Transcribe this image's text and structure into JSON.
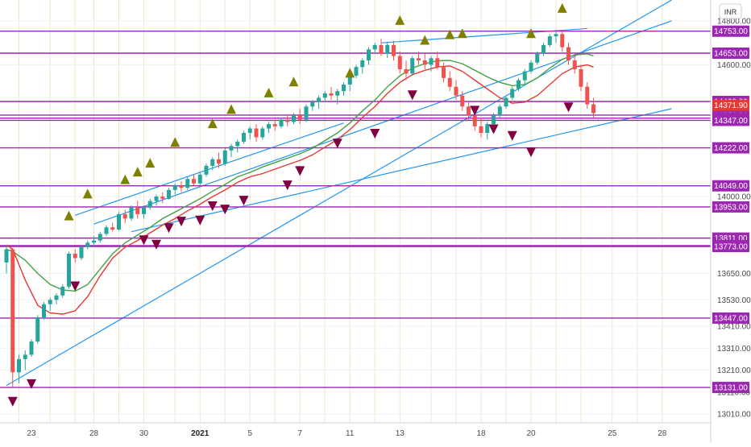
{
  "chart_data": {
    "type": "candlestick",
    "symbol_currency": "INR",
    "price_axis": {
      "range": [
        12970,
        14895
      ],
      "ticks": [
        {
          "label": "14800.00",
          "value": 14800
        },
        {
          "label": "14600.00",
          "value": 14600
        },
        {
          "label": "14000.00",
          "value": 14000
        },
        {
          "label": "13650.00",
          "value": 13650
        },
        {
          "label": "13530.00",
          "value": 13530
        },
        {
          "label": "13410.00",
          "value": 13410
        },
        {
          "label": "13310.00",
          "value": 13310
        },
        {
          "label": "13210.00",
          "value": 13210
        },
        {
          "label": "13110.00",
          "value": 13110
        },
        {
          "label": "13010.00",
          "value": 13010
        }
      ]
    },
    "time_axis": {
      "labels": [
        {
          "label": "23",
          "bar": 4
        },
        {
          "label": "28",
          "bar": 14
        },
        {
          "label": "30",
          "bar": 22
        },
        {
          "label": "2021",
          "bar": 31,
          "bold": true
        },
        {
          "label": "5",
          "bar": 39
        },
        {
          "label": "7",
          "bar": 47
        },
        {
          "label": "11",
          "bar": 55
        },
        {
          "label": "13",
          "bar": 63
        },
        {
          "label": "18",
          "bar": 76
        },
        {
          "label": "20",
          "bar": 84
        },
        {
          "label": "25",
          "bar": 97
        },
        {
          "label": "28",
          "bar": 105
        }
      ],
      "vertical_grid_bars": [
        2,
        7,
        11,
        14,
        18,
        22,
        27,
        31,
        35,
        39,
        43,
        47,
        51,
        55,
        59,
        63,
        68,
        72,
        76,
        80,
        84,
        88,
        92,
        97,
        101,
        105
      ]
    },
    "horizontal_levels": [
      {
        "label": "14753.00",
        "value": 14753
      },
      {
        "label": "14653.00",
        "value": 14653
      },
      {
        "label": "14433.00",
        "value": 14433
      },
      {
        "label": "14371.00",
        "value": 14371
      },
      {
        "label": "14357.00",
        "value": 14357
      },
      {
        "label": "14347.00",
        "value": 14347
      },
      {
        "label": "14222.00",
        "value": 14222
      },
      {
        "label": "14049.00",
        "value": 14049
      },
      {
        "label": "13953.00",
        "value": 13953
      },
      {
        "label": "13811.00",
        "value": 13811
      },
      {
        "label": "13777.00",
        "value": 13777
      },
      {
        "label": "13773.00",
        "value": 13773
      },
      {
        "label": "13447.00",
        "value": 13447
      },
      {
        "label": "13131.00",
        "value": 13131
      }
    ],
    "current_price": {
      "label": "14371.90",
      "value": 14371.9
    },
    "colors": {
      "level_line": "#9c27b0",
      "level_label_bg": "#9c27b0",
      "current_price_bg": "#e53935",
      "trendline": "#2196f3",
      "ema_fast": "#e53935",
      "ema_slow": "#43a047",
      "candle_up": "#26a69a",
      "candle_down": "#ef5350",
      "signal_up": "#808000",
      "signal_down": "#800040",
      "grid_vertical": "#f5e6c8",
      "grid_horizontal": "#f0f0f0"
    },
    "trendlines": [
      {
        "name": "",
        "points": [
          [
            0,
            13140
          ],
          [
            106.5,
            14895
          ]
        ]
      },
      {
        "name": "",
        "points": [
          [
            14,
            13875
          ],
          [
            106.5,
            14800
          ]
        ]
      },
      {
        "name": "",
        "points": [
          [
            20,
            13840
          ],
          [
            106.5,
            14400
          ]
        ]
      },
      {
        "name": "",
        "points": [
          [
            11,
            13915
          ],
          [
            54,
            14335
          ]
        ]
      },
      {
        "name": "",
        "points": [
          [
            60,
            14700
          ],
          [
            93,
            14765
          ]
        ]
      }
    ],
    "ema_fast": [
      [
        0,
        13780
      ],
      [
        1,
        13760
      ],
      [
        3,
        13620
      ],
      [
        5,
        13505
      ],
      [
        7,
        13470
      ],
      [
        9,
        13465
      ],
      [
        11,
        13480
      ],
      [
        13,
        13545
      ],
      [
        15,
        13640
      ],
      [
        17,
        13720
      ],
      [
        19,
        13770
      ],
      [
        21,
        13800
      ],
      [
        23,
        13835
      ],
      [
        25,
        13870
      ],
      [
        27,
        13900
      ],
      [
        29,
        13935
      ],
      [
        31,
        13965
      ],
      [
        33,
        14000
      ],
      [
        35,
        14030
      ],
      [
        37,
        14065
      ],
      [
        39,
        14090
      ],
      [
        41,
        14105
      ],
      [
        43,
        14125
      ],
      [
        45,
        14145
      ],
      [
        47,
        14165
      ],
      [
        49,
        14190
      ],
      [
        51,
        14225
      ],
      [
        53,
        14260
      ],
      [
        55,
        14305
      ],
      [
        57,
        14360
      ],
      [
        59,
        14410
      ],
      [
        61,
        14470
      ],
      [
        63,
        14520
      ],
      [
        65,
        14555
      ],
      [
        67,
        14575
      ],
      [
        69,
        14590
      ],
      [
        71,
        14595
      ],
      [
        73,
        14570
      ],
      [
        75,
        14530
      ],
      [
        77,
        14490
      ],
      [
        79,
        14450
      ],
      [
        81,
        14425
      ],
      [
        83,
        14430
      ],
      [
        85,
        14460
      ],
      [
        87,
        14510
      ],
      [
        89,
        14560
      ],
      [
        91,
        14590
      ],
      [
        93,
        14600
      ],
      [
        94,
        14590
      ]
    ],
    "ema_slow": [
      [
        0,
        13760
      ],
      [
        1,
        13750
      ],
      [
        3,
        13710
      ],
      [
        5,
        13650
      ],
      [
        7,
        13600
      ],
      [
        9,
        13575
      ],
      [
        11,
        13570
      ],
      [
        13,
        13600
      ],
      [
        15,
        13670
      ],
      [
        17,
        13740
      ],
      [
        19,
        13790
      ],
      [
        21,
        13825
      ],
      [
        23,
        13860
      ],
      [
        25,
        13900
      ],
      [
        27,
        13930
      ],
      [
        29,
        13960
      ],
      [
        31,
        13990
      ],
      [
        33,
        14025
      ],
      [
        35,
        14055
      ],
      [
        37,
        14090
      ],
      [
        39,
        14110
      ],
      [
        41,
        14135
      ],
      [
        43,
        14155
      ],
      [
        45,
        14175
      ],
      [
        47,
        14195
      ],
      [
        49,
        14220
      ],
      [
        51,
        14255
      ],
      [
        53,
        14290
      ],
      [
        55,
        14335
      ],
      [
        57,
        14390
      ],
      [
        59,
        14440
      ],
      [
        61,
        14500
      ],
      [
        63,
        14550
      ],
      [
        65,
        14585
      ],
      [
        67,
        14605
      ],
      [
        69,
        14618
      ],
      [
        71,
        14620
      ],
      [
        73,
        14605
      ],
      [
        75,
        14575
      ],
      [
        77,
        14545
      ],
      [
        79,
        14520
      ],
      [
        81,
        14505
      ],
      [
        83,
        14510
      ],
      [
        85,
        14540
      ],
      [
        87,
        14585
      ],
      [
        89,
        14625
      ],
      [
        91,
        14645
      ],
      [
        93,
        14650
      ],
      [
        94,
        14640
      ]
    ],
    "candles": [
      [
        0,
        13700,
        13780,
        13650,
        13760
      ],
      [
        1,
        13760,
        13765,
        13130,
        13200
      ],
      [
        2,
        13200,
        13280,
        13150,
        13260
      ],
      [
        3,
        13260,
        13300,
        13210,
        13280
      ],
      [
        4,
        13280,
        13350,
        13270,
        13340
      ],
      [
        5,
        13340,
        13460,
        13330,
        13450
      ],
      [
        6,
        13450,
        13520,
        13440,
        13510
      ],
      [
        7,
        13510,
        13540,
        13480,
        13530
      ],
      [
        8,
        13530,
        13560,
        13510,
        13550
      ],
      [
        9,
        13550,
        13600,
        13540,
        13590
      ],
      [
        10,
        13590,
        13750,
        13580,
        13740
      ],
      [
        11,
        13740,
        13760,
        13700,
        13720
      ],
      [
        12,
        13720,
        13780,
        13710,
        13770
      ],
      [
        13,
        13770,
        13800,
        13760,
        13790
      ],
      [
        14,
        13790,
        13820,
        13770,
        13800
      ],
      [
        15,
        13800,
        13840,
        13790,
        13830
      ],
      [
        16,
        13830,
        13870,
        13820,
        13860
      ],
      [
        17,
        13860,
        13880,
        13840,
        13850
      ],
      [
        18,
        13850,
        13930,
        13845,
        13920
      ],
      [
        19,
        13920,
        13940,
        13880,
        13900
      ],
      [
        20,
        13900,
        13960,
        13890,
        13950
      ],
      [
        21,
        13950,
        13980,
        13900,
        13920
      ],
      [
        22,
        13920,
        13960,
        13900,
        13950
      ],
      [
        23,
        13950,
        13990,
        13940,
        13980
      ],
      [
        24,
        13980,
        14010,
        13960,
        14000
      ],
      [
        25,
        14000,
        14020,
        13970,
        13990
      ],
      [
        26,
        13990,
        14040,
        13985,
        14030
      ],
      [
        27,
        14030,
        14060,
        14010,
        14050
      ],
      [
        28,
        14050,
        14070,
        14020,
        14040
      ],
      [
        29,
        14040,
        14090,
        14030,
        14080
      ],
      [
        30,
        14080,
        14100,
        14050,
        14060
      ],
      [
        31,
        14060,
        14110,
        14050,
        14100
      ],
      [
        32,
        14100,
        14150,
        14090,
        14140
      ],
      [
        33,
        14140,
        14180,
        14120,
        14170
      ],
      [
        34,
        14170,
        14200,
        14130,
        14150
      ],
      [
        35,
        14150,
        14220,
        14140,
        14210
      ],
      [
        36,
        14210,
        14240,
        14180,
        14230
      ],
      [
        37,
        14230,
        14260,
        14200,
        14250
      ],
      [
        38,
        14250,
        14300,
        14240,
        14290
      ],
      [
        39,
        14290,
        14320,
        14260,
        14310
      ],
      [
        40,
        14310,
        14330,
        14250,
        14270
      ],
      [
        41,
        14270,
        14320,
        14260,
        14310
      ],
      [
        42,
        14310,
        14340,
        14290,
        14330
      ],
      [
        43,
        14330,
        14350,
        14300,
        14320
      ],
      [
        44,
        14320,
        14360,
        14310,
        14350
      ],
      [
        45,
        14350,
        14370,
        14320,
        14340
      ],
      [
        46,
        14340,
        14380,
        14330,
        14370
      ],
      [
        47,
        14370,
        14400,
        14330,
        14350
      ],
      [
        48,
        14350,
        14420,
        14340,
        14410
      ],
      [
        49,
        14410,
        14440,
        14390,
        14430
      ],
      [
        50,
        14430,
        14460,
        14400,
        14450
      ],
      [
        51,
        14450,
        14480,
        14430,
        14470
      ],
      [
        52,
        14470,
        14500,
        14440,
        14460
      ],
      [
        53,
        14460,
        14490,
        14420,
        14480
      ],
      [
        54,
        14480,
        14520,
        14460,
        14510
      ],
      [
        55,
        14510,
        14560,
        14480,
        14550
      ],
      [
        56,
        14550,
        14600,
        14540,
        14590
      ],
      [
        57,
        14590,
        14630,
        14560,
        14620
      ],
      [
        58,
        14620,
        14680,
        14600,
        14670
      ],
      [
        59,
        14670,
        14700,
        14650,
        14690
      ],
      [
        60,
        14690,
        14720,
        14640,
        14650
      ],
      [
        61,
        14650,
        14700,
        14630,
        14690
      ],
      [
        62,
        14690,
        14710,
        14620,
        14640
      ],
      [
        63,
        14640,
        14660,
        14560,
        14580
      ],
      [
        64,
        14580,
        14620,
        14530,
        14560
      ],
      [
        65,
        14560,
        14640,
        14550,
        14630
      ],
      [
        66,
        14630,
        14660,
        14600,
        14620
      ],
      [
        67,
        14620,
        14650,
        14580,
        14600
      ],
      [
        68,
        14600,
        14640,
        14570,
        14630
      ],
      [
        69,
        14630,
        14660,
        14580,
        14590
      ],
      [
        70,
        14590,
        14610,
        14520,
        14540
      ],
      [
        71,
        14540,
        14570,
        14480,
        14500
      ],
      [
        72,
        14500,
        14530,
        14440,
        14460
      ],
      [
        73,
        14460,
        14480,
        14390,
        14410
      ],
      [
        74,
        14410,
        14430,
        14350,
        14370
      ],
      [
        75,
        14370,
        14400,
        14300,
        14320
      ],
      [
        76,
        14320,
        14360,
        14270,
        14290
      ],
      [
        77,
        14290,
        14340,
        14260,
        14330
      ],
      [
        78,
        14330,
        14380,
        14320,
        14370
      ],
      [
        79,
        14370,
        14420,
        14360,
        14410
      ],
      [
        80,
        14410,
        14460,
        14400,
        14450
      ],
      [
        81,
        14450,
        14500,
        14440,
        14490
      ],
      [
        82,
        14490,
        14540,
        14480,
        14530
      ],
      [
        83,
        14530,
        14580,
        14510,
        14570
      ],
      [
        84,
        14570,
        14620,
        14560,
        14610
      ],
      [
        85,
        14610,
        14660,
        14600,
        14650
      ],
      [
        86,
        14650,
        14700,
        14640,
        14690
      ],
      [
        87,
        14690,
        14740,
        14680,
        14730
      ],
      [
        88,
        14730,
        14760,
        14700,
        14740
      ],
      [
        89,
        14740,
        14755,
        14660,
        14680
      ],
      [
        90,
        14680,
        14700,
        14600,
        14620
      ],
      [
        91,
        14620,
        14650,
        14560,
        14580
      ],
      [
        92,
        14580,
        14600,
        14480,
        14500
      ],
      [
        93,
        14500,
        14520,
        14400,
        14420
      ],
      [
        94,
        14420,
        14450,
        14360,
        14380
      ]
    ],
    "signals_up": [
      [
        10,
        13910
      ],
      [
        13,
        14010
      ],
      [
        19,
        14075
      ],
      [
        21,
        14110
      ],
      [
        23,
        14150
      ],
      [
        27,
        14245
      ],
      [
        33,
        14330
      ],
      [
        36,
        14395
      ],
      [
        42,
        14470
      ],
      [
        46,
        14520
      ],
      [
        55,
        14560
      ],
      [
        63,
        14800
      ],
      [
        67,
        14710
      ],
      [
        71,
        14735
      ],
      [
        73,
        14740
      ],
      [
        84,
        14740
      ],
      [
        89,
        14855
      ]
    ],
    "signals_down": [
      [
        1,
        13070
      ],
      [
        4,
        13150
      ],
      [
        11,
        13595
      ],
      [
        22,
        13805
      ],
      [
        24,
        13785
      ],
      [
        26,
        13860
      ],
      [
        28,
        13890
      ],
      [
        31,
        13895
      ],
      [
        33,
        13960
      ],
      [
        35,
        13945
      ],
      [
        38,
        13985
      ],
      [
        45,
        14055
      ],
      [
        47,
        14120
      ],
      [
        53,
        14245
      ],
      [
        59,
        14290
      ],
      [
        65,
        14465
      ],
      [
        75,
        14395
      ],
      [
        78,
        14310
      ],
      [
        81,
        14280
      ],
      [
        84,
        14205
      ],
      [
        90,
        14410
      ]
    ]
  }
}
